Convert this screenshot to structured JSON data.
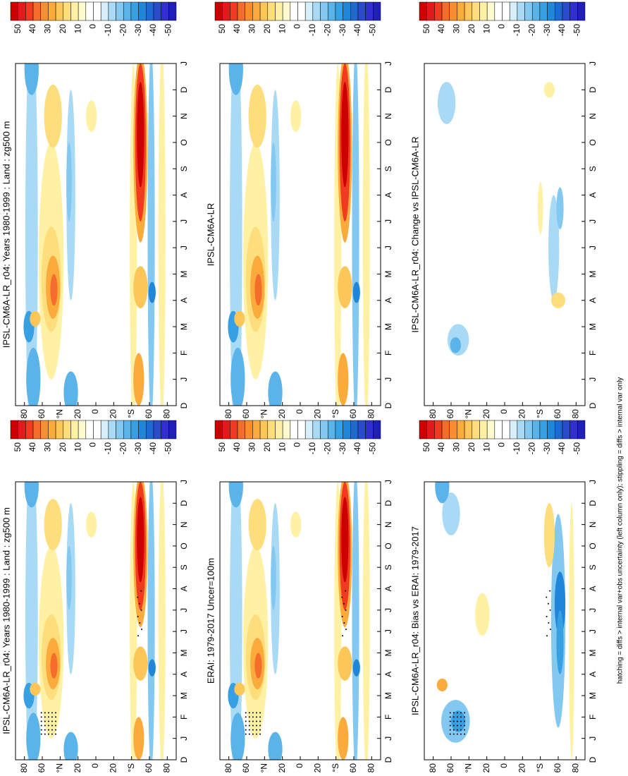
{
  "panels": [
    {
      "title": "IPSL-CM6A-LR_r04: Years 1980-1999 : Land : zg500 m"
    },
    {
      "title": "IPSL-CM6A-LR"
    },
    {
      "title": "IPSL-CM6A-LR_r04: Change vs IPSL-CM6A-LR"
    },
    {
      "title": "IPSL-CM6A-LR_r04: Years 1980-1999 : Land : zg500 m"
    },
    {
      "title": "ERAI: 1979-2017 Uncer=100m"
    },
    {
      "title": "IPSL-CM6A-LR_r04: Bias vs ERAI: 1979-2017"
    }
  ],
  "colorbar_labels": [
    50,
    40,
    30,
    20,
    10,
    0,
    -10,
    -20,
    -30,
    -40,
    -50
  ],
  "lat_labels": [
    "80",
    "60",
    "°N",
    "20",
    "0",
    "20",
    "°S",
    "60",
    "80"
  ],
  "month_labels": [
    "D",
    "J",
    "F",
    "M",
    "A",
    "M",
    "J",
    "J",
    "A",
    "S",
    "O",
    "N",
    "D",
    "J"
  ],
  "footer": "hatching = diffs > internal var+obs uncertainty (left column only); stippling = diffs > internal var only"
}
